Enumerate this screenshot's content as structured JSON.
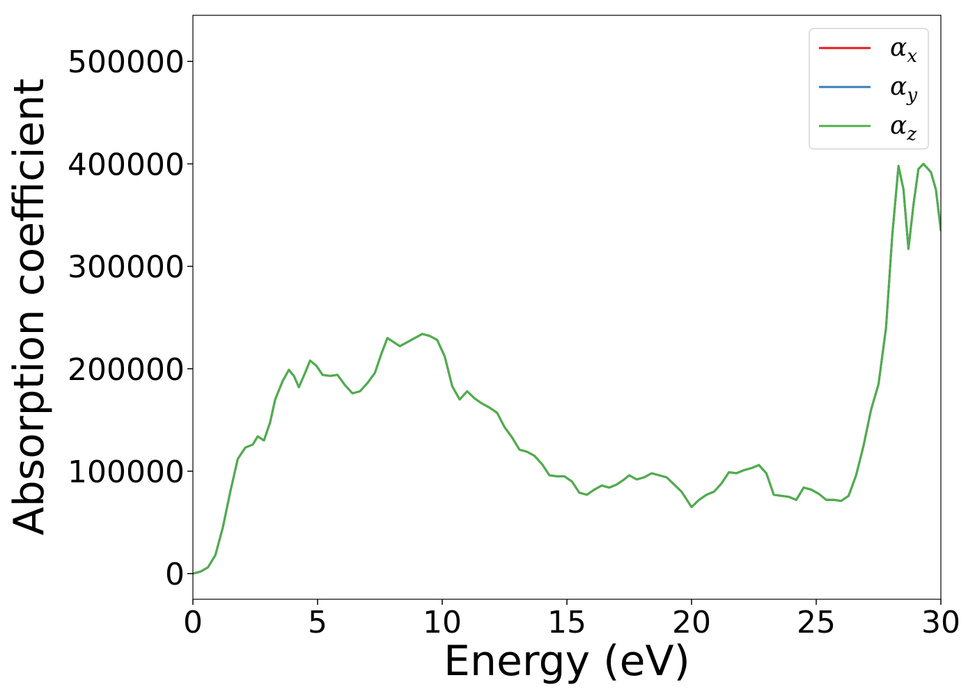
{
  "chart_data": {
    "type": "line",
    "title": "",
    "xlabel": "Energy (eV)",
    "ylabel": "Absorption coefficient",
    "xlim": [
      0,
      30
    ],
    "ylim": [
      -25000,
      545000
    ],
    "xticks": [
      0,
      5,
      10,
      15,
      20,
      25,
      30
    ],
    "yticks": [
      0,
      100000,
      200000,
      300000,
      400000,
      500000
    ],
    "xtick_labels": [
      "0",
      "5",
      "10",
      "15",
      "20",
      "25",
      "30"
    ],
    "ytick_labels": [
      "0",
      "100000",
      "200000",
      "300000",
      "400000",
      "500000"
    ],
    "grid": false,
    "legend_position": "top-right",
    "x": [
      0,
      0.3,
      0.6,
      0.9,
      1.2,
      1.5,
      1.8,
      2.1,
      2.4,
      2.6,
      2.85,
      3.1,
      3.3,
      3.6,
      3.85,
      4.05,
      4.25,
      4.5,
      4.7,
      4.95,
      5.2,
      5.5,
      5.8,
      6.1,
      6.4,
      6.7,
      7.0,
      7.3,
      7.55,
      7.8,
      8.05,
      8.3,
      8.6,
      8.9,
      9.2,
      9.5,
      9.8,
      10.1,
      10.4,
      10.7,
      11.0,
      11.3,
      11.6,
      11.9,
      12.2,
      12.5,
      12.8,
      13.1,
      13.4,
      13.7,
      14.0,
      14.3,
      14.6,
      14.9,
      15.2,
      15.5,
      15.8,
      16.1,
      16.4,
      16.7,
      17.0,
      17.3,
      17.5,
      17.8,
      18.1,
      18.4,
      18.7,
      19.0,
      19.3,
      19.6,
      20.0,
      20.3,
      20.6,
      20.9,
      21.2,
      21.5,
      21.8,
      22.1,
      22.4,
      22.7,
      23.0,
      23.3,
      23.6,
      23.9,
      24.2,
      24.5,
      24.8,
      25.1,
      25.4,
      25.7,
      26.0,
      26.3,
      26.6,
      26.9,
      27.2,
      27.5,
      27.8,
      28.05,
      28.3,
      28.5,
      28.7,
      28.9,
      29.1,
      29.3,
      29.6,
      29.8,
      30.0
    ],
    "series": [
      {
        "name": "α_x",
        "color": "#e41a1c",
        "values": [
          0,
          2000,
          6000,
          18000,
          45000,
          80000,
          112000,
          123000,
          126000,
          134000,
          130000,
          148000,
          170000,
          188000,
          199000,
          193000,
          182000,
          196000,
          208000,
          203000,
          194000,
          193000,
          194000,
          184000,
          176000,
          178000,
          186000,
          196000,
          214000,
          230000,
          226000,
          222000,
          226000,
          230000,
          234000,
          232000,
          228000,
          212000,
          183000,
          170000,
          178000,
          171000,
          166000,
          162000,
          157000,
          143000,
          133000,
          121000,
          119000,
          115000,
          107000,
          96000,
          95000,
          95000,
          90000,
          79000,
          77000,
          82000,
          86000,
          84000,
          87000,
          92000,
          96000,
          92000,
          94000,
          98000,
          96000,
          94000,
          87000,
          80000,
          65000,
          72000,
          77000,
          80000,
          88000,
          99000,
          98000,
          101000,
          103000,
          106000,
          98000,
          77000,
          76000,
          75000,
          72000,
          84000,
          82000,
          78000,
          72000,
          72000,
          71000,
          76000,
          96000,
          125000,
          160000,
          185000,
          240000,
          330000,
          398000,
          375000,
          317000,
          360000,
          395000,
          400000,
          392000,
          375000,
          335000
        ]
      },
      {
        "name": "α_y",
        "color": "#377eb8",
        "values": [
          0,
          2000,
          6000,
          18000,
          45000,
          80000,
          112000,
          123000,
          126000,
          134000,
          130000,
          148000,
          170000,
          188000,
          199000,
          193000,
          182000,
          196000,
          208000,
          203000,
          194000,
          193000,
          194000,
          184000,
          176000,
          178000,
          186000,
          196000,
          214000,
          230000,
          226000,
          222000,
          226000,
          230000,
          234000,
          232000,
          228000,
          212000,
          183000,
          170000,
          178000,
          171000,
          166000,
          162000,
          157000,
          143000,
          133000,
          121000,
          119000,
          115000,
          107000,
          96000,
          95000,
          95000,
          90000,
          79000,
          77000,
          82000,
          86000,
          84000,
          87000,
          92000,
          96000,
          92000,
          94000,
          98000,
          96000,
          94000,
          87000,
          80000,
          65000,
          72000,
          77000,
          80000,
          88000,
          99000,
          98000,
          101000,
          103000,
          106000,
          98000,
          77000,
          76000,
          75000,
          72000,
          84000,
          82000,
          78000,
          72000,
          72000,
          71000,
          76000,
          96000,
          125000,
          160000,
          185000,
          240000,
          330000,
          398000,
          375000,
          317000,
          360000,
          395000,
          400000,
          392000,
          375000,
          335000
        ]
      },
      {
        "name": "α_z",
        "color": "#4daf4a",
        "values": [
          0,
          2000,
          6000,
          18000,
          45000,
          80000,
          112000,
          123000,
          126000,
          134000,
          130000,
          148000,
          170000,
          188000,
          199000,
          193000,
          182000,
          196000,
          208000,
          203000,
          194000,
          193000,
          194000,
          184000,
          176000,
          178000,
          186000,
          196000,
          214000,
          230000,
          226000,
          222000,
          226000,
          230000,
          234000,
          232000,
          228000,
          212000,
          183000,
          170000,
          178000,
          171000,
          166000,
          162000,
          157000,
          143000,
          133000,
          121000,
          119000,
          115000,
          107000,
          96000,
          95000,
          95000,
          90000,
          79000,
          77000,
          82000,
          86000,
          84000,
          87000,
          92000,
          96000,
          92000,
          94000,
          98000,
          96000,
          94000,
          87000,
          80000,
          65000,
          72000,
          77000,
          80000,
          88000,
          99000,
          98000,
          101000,
          103000,
          106000,
          98000,
          77000,
          76000,
          75000,
          72000,
          84000,
          82000,
          78000,
          72000,
          72000,
          71000,
          76000,
          96000,
          125000,
          160000,
          185000,
          240000,
          330000,
          398000,
          375000,
          317000,
          360000,
          395000,
          400000,
          392000,
          375000,
          335000
        ]
      }
    ],
    "legend": [
      {
        "base": "α",
        "sub": "x",
        "color": "#e41a1c"
      },
      {
        "base": "α",
        "sub": "y",
        "color": "#377eb8"
      },
      {
        "base": "α",
        "sub": "z",
        "color": "#4daf4a"
      }
    ]
  }
}
